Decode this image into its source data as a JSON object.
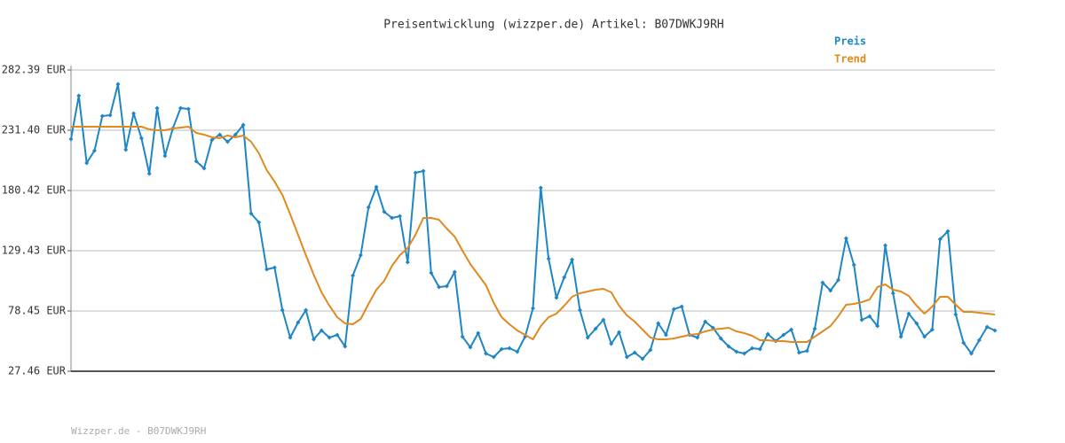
{
  "chart_data": {
    "type": "line",
    "title": "Preisentwicklung (wizzper.de) Artikel: B07DWKJ9RH",
    "footer": "Wizzper.de - B07DWKJ9RH",
    "ylim": [
      27.46,
      282.39
    ],
    "yticks": [
      {
        "value": 27.46,
        "label": "27.46 EUR"
      },
      {
        "value": 78.45,
        "label": "78.45 EUR"
      },
      {
        "value": 129.43,
        "label": "129.43 EUR"
      },
      {
        "value": 180.42,
        "label": "180.42 EUR"
      },
      {
        "value": 231.4,
        "label": "231.40 EUR"
      },
      {
        "value": 282.39,
        "label": "282.39 EUR"
      }
    ],
    "grid": true,
    "legend": "top-right",
    "series": [
      {
        "name": "Preis",
        "color": "#1f86c4",
        "markers": true,
        "values": [
          223.9,
          260.65,
          203.66,
          214.16,
          243.4,
          244.15,
          270.4,
          214.91,
          245.65,
          224.66,
          194.67,
          250.15,
          209.66,
          232.91,
          250.15,
          249.4,
          205.16,
          199.16,
          223.16,
          227.66,
          221.66,
          227.66,
          235.9,
          160.92,
          153.43,
          113.69,
          115.19,
          79.2,
          55.95,
          68.7,
          79.2,
          54.45,
          61.95,
          55.95,
          58.2,
          48.45,
          108.44,
          125.68,
          166.17,
          183.42,
          162.42,
          157.18,
          158.68,
          119.69,
          195.42,
          196.91,
          110.69,
          98.69,
          99.44,
          111.44,
          56.7,
          47.7,
          59.7,
          42.46,
          39.46,
          46.21,
          46.95,
          43.96,
          56.7,
          80.7,
          182.67,
          122.68,
          89.69,
          106.94,
          121.93,
          79.2,
          55.95,
          63.45,
          70.95,
          50.7,
          60.45,
          39.46,
          43.21,
          37.96,
          45.46,
          67.95,
          58.2,
          79.95,
          82.2,
          58.2,
          55.95,
          69.45,
          64.2,
          55.2,
          48.45,
          43.96,
          42.46,
          46.95,
          46.21,
          58.95,
          52.95,
          58.2,
          62.7,
          43.21,
          44.71,
          63.45,
          102.44,
          95.69,
          104.69,
          139.93,
          117.44,
          70.95,
          73.95,
          65.7,
          133.93,
          93.44,
          56.7,
          76.2,
          67.95,
          56.7,
          62.7,
          139.18,
          145.93,
          75.45,
          51.45,
          42.46,
          53.7,
          64.95,
          61.95
        ]
      },
      {
        "name": "Trend",
        "color": "#e08a1e",
        "markers": false,
        "values": [
          234.4,
          234.4,
          234.4,
          234.4,
          234.4,
          234.4,
          234.4,
          234.4,
          234.4,
          234.4,
          232.16,
          231.41,
          231.41,
          232.91,
          233.66,
          234.4,
          229.16,
          227.66,
          225.41,
          224.66,
          226.91,
          225.41,
          226.91,
          221.66,
          211.91,
          197.66,
          187.92,
          176.67,
          160.17,
          142.93,
          125.68,
          109.19,
          94.19,
          82.95,
          73.2,
          67.95,
          67.2,
          71.7,
          84.44,
          96.44,
          103.94,
          116.69,
          125.68,
          131.68,
          142.93,
          157.18,
          157.18,
          155.68,
          148.18,
          141.43,
          129.43,
          118.19,
          109.19,
          100.19,
          85.19,
          73.2,
          67.2,
          61.95,
          58.2,
          54.45,
          65.7,
          73.2,
          76.2,
          82.95,
          90.44,
          93.44,
          94.94,
          96.44,
          97.19,
          94.19,
          82.95,
          74.7,
          69.45,
          62.7,
          55.95,
          54.45,
          54.45,
          55.2,
          56.7,
          58.2,
          58.95,
          61.2,
          62.7,
          63.45,
          64.2,
          61.2,
          59.7,
          57.45,
          53.7,
          53.7,
          52.95,
          52.95,
          52.2,
          52.2,
          52.2,
          56.7,
          61.2,
          65.7,
          73.95,
          83.7,
          84.44,
          85.94,
          88.19,
          98.69,
          100.94,
          96.44,
          94.94,
          91.19,
          82.95,
          76.2,
          82.2,
          90.44,
          90.44,
          83.7,
          77.7,
          77.7,
          76.95,
          76.2,
          75.45
        ]
      }
    ]
  }
}
